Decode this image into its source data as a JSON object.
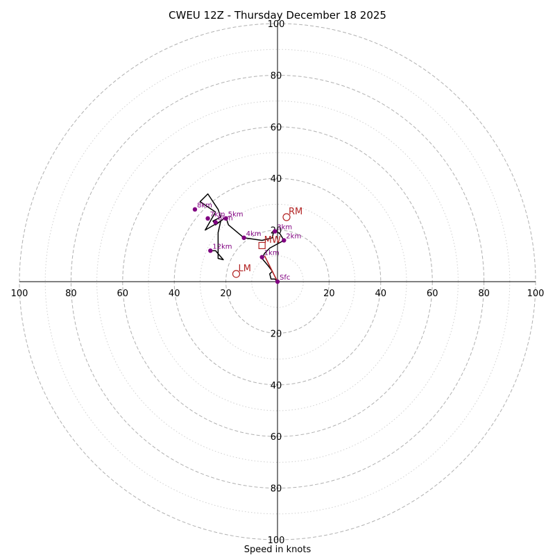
{
  "chart_data": {
    "type": "scatter",
    "title": "CWEU 12Z - Thursday December 18 2025",
    "xlabel": "Speed in knots",
    "ylabel": "",
    "xlim": [
      -100,
      100
    ],
    "ylim": [
      -100,
      100
    ],
    "ring_ticks": [
      "100",
      "80",
      "60",
      "40",
      "20",
      "20",
      "40",
      "60",
      "80",
      "100"
    ],
    "rings_major": [
      20,
      40,
      60,
      80,
      100
    ],
    "rings_minor": [
      10,
      30,
      50,
      70,
      90
    ],
    "colors": {
      "hodograph": "#000000",
      "markers": "#800080",
      "storm_motion": "#b22222",
      "grid": "#b0b0b0"
    },
    "hodograph_line": [
      [
        0,
        0
      ],
      [
        -1,
        1
      ],
      [
        -2.5,
        1
      ],
      [
        -3,
        3
      ],
      [
        -2,
        4
      ],
      [
        -3.5,
        6
      ],
      [
        -6,
        9
      ],
      [
        -5,
        11
      ],
      [
        -3,
        13
      ],
      [
        2.5,
        16
      ],
      [
        1,
        18.5
      ],
      [
        -1,
        20
      ],
      [
        -1.5,
        19.5
      ],
      [
        -2,
        17
      ],
      [
        -6,
        16
      ],
      [
        -13,
        17
      ],
      [
        -19,
        22
      ],
      [
        -20,
        25
      ],
      [
        -24,
        22
      ],
      [
        -25,
        23.5
      ],
      [
        -22,
        25
      ],
      [
        -23,
        28
      ],
      [
        -27,
        34
      ],
      [
        -30,
        31
      ],
      [
        -24,
        27
      ],
      [
        -28,
        20
      ],
      [
        -22,
        23.5
      ],
      [
        -23,
        19
      ],
      [
        -23,
        9
      ],
      [
        -21,
        8.5
      ],
      [
        -24,
        12
      ],
      [
        -26,
        12
      ]
    ],
    "storm_motion_line": [
      [
        0,
        0
      ],
      [
        -5,
        10
      ]
    ],
    "height_markers": [
      {
        "label": "Sfc",
        "u": 0,
        "v": 0
      },
      {
        "label": "1km",
        "u": -6,
        "v": 9.5
      },
      {
        "label": "2km",
        "u": 2.5,
        "v": 16
      },
      {
        "label": "3km",
        "u": -1,
        "v": 19.5
      },
      {
        "label": "4km",
        "u": -13,
        "v": 17
      },
      {
        "label": "5km",
        "u": -20,
        "v": 24.5
      },
      {
        "label": "6km",
        "u": -24,
        "v": 23
      },
      {
        "label": "7km",
        "u": -27,
        "v": 24.5
      },
      {
        "label": "8km",
        "u": -32,
        "v": 28
      },
      {
        "label": "12km",
        "u": -26,
        "v": 12
      }
    ],
    "storm_motions": [
      {
        "label": "RM",
        "u": 3.5,
        "v": 25,
        "shape": "circle"
      },
      {
        "label": "LM",
        "u": -16,
        "v": 3,
        "shape": "circle"
      },
      {
        "label": "MW",
        "u": -6,
        "v": 14,
        "shape": "square"
      }
    ]
  }
}
